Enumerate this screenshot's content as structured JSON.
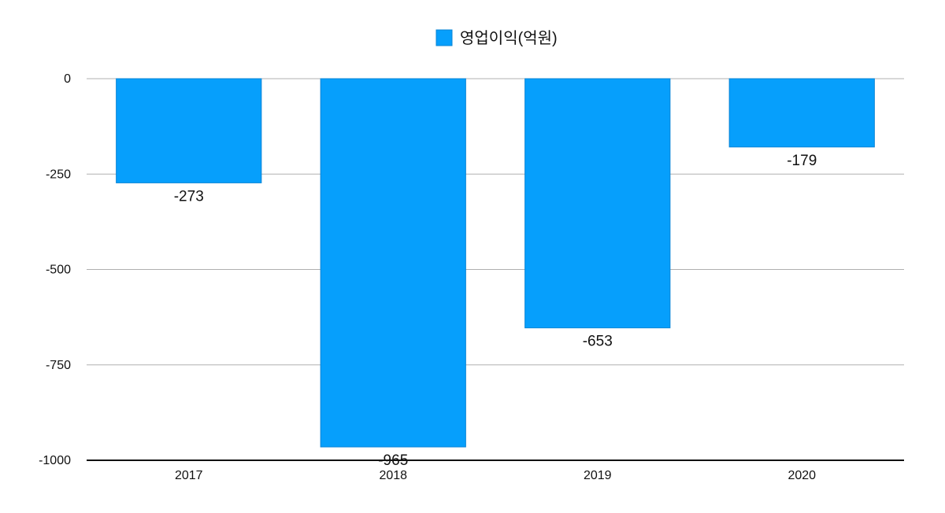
{
  "chart_data": {
    "type": "bar",
    "categories": [
      "2017",
      "2018",
      "2019",
      "2020"
    ],
    "series": [
      {
        "name": "영업이익(억원)",
        "values": [
          -273,
          -965,
          -653,
          -179
        ]
      }
    ],
    "data_labels": [
      "-273",
      "-965",
      "-653",
      "-179"
    ],
    "y_ticks": [
      0,
      -250,
      -500,
      -750,
      -1000
    ],
    "y_tick_labels": [
      "0",
      "-250",
      "-500",
      "-750",
      "-1000"
    ],
    "ylim": [
      -1000,
      0
    ],
    "grid": true,
    "legend_position": "top-center",
    "colors": {
      "bar": "#069ffc",
      "bar_edge": "#0a84d6",
      "grid": "#b0b0b0",
      "axis": "#111111"
    }
  }
}
